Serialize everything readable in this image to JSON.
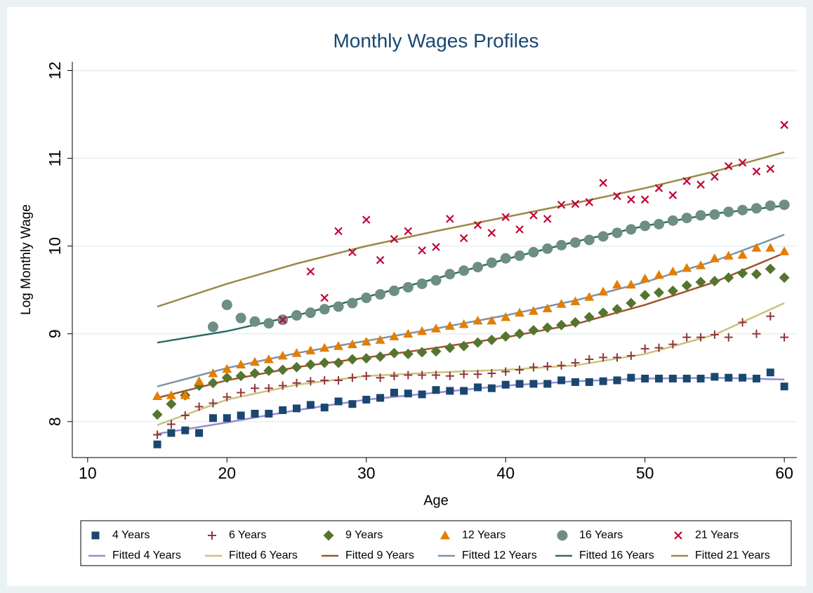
{
  "chart_data": {
    "type": "scatter",
    "title": "Monthly Wages Profiles",
    "xlabel": "Age",
    "ylabel": "Log Monthly Wage",
    "xlim": [
      8.9,
      60.9
    ],
    "ylim": [
      7.59,
      12.1
    ],
    "xticks": [
      10,
      20,
      30,
      40,
      50,
      60
    ],
    "yticks": [
      8,
      9,
      10,
      11,
      12
    ],
    "grid": true,
    "legend": "bottom",
    "x": [
      15,
      16,
      17,
      18,
      19,
      20,
      21,
      22,
      23,
      24,
      25,
      26,
      27,
      28,
      29,
      30,
      31,
      32,
      33,
      34,
      35,
      36,
      37,
      38,
      39,
      40,
      41,
      42,
      43,
      44,
      45,
      46,
      47,
      48,
      49,
      50,
      51,
      52,
      53,
      54,
      55,
      56,
      57,
      58,
      59,
      60
    ],
    "series": [
      {
        "name": "4 Years",
        "type": "scatter",
        "marker": "square",
        "color": "#1a476f",
        "values": [
          7.74,
          7.87,
          7.9,
          7.87,
          8.04,
          8.04,
          8.07,
          8.09,
          8.09,
          8.13,
          8.15,
          8.19,
          8.16,
          8.23,
          8.2,
          8.25,
          8.27,
          8.33,
          8.32,
          8.31,
          8.36,
          8.35,
          8.35,
          8.39,
          8.38,
          8.42,
          8.43,
          8.43,
          8.43,
          8.47,
          8.45,
          8.45,
          8.46,
          8.47,
          8.5,
          8.49,
          8.49,
          8.49,
          8.49,
          8.49,
          8.51,
          8.5,
          8.5,
          8.49,
          8.56,
          8.4
        ]
      },
      {
        "name": "6 Years",
        "type": "scatter",
        "marker": "plus",
        "color": "#90353b",
        "values": [
          7.85,
          7.97,
          8.07,
          8.17,
          8.21,
          8.28,
          8.33,
          8.38,
          8.38,
          8.41,
          8.44,
          8.46,
          8.47,
          8.47,
          8.5,
          8.52,
          8.5,
          8.52,
          8.53,
          8.53,
          8.53,
          8.52,
          8.54,
          8.54,
          8.55,
          8.57,
          8.59,
          8.62,
          8.63,
          8.64,
          8.67,
          8.71,
          8.73,
          8.73,
          8.75,
          8.83,
          8.84,
          8.88,
          8.96,
          8.96,
          8.99,
          8.96,
          9.13,
          9.0,
          9.2,
          8.96
        ]
      },
      {
        "name": "9 Years",
        "type": "scatter",
        "marker": "diamond",
        "color": "#55752f",
        "values": [
          8.08,
          8.2,
          8.3,
          8.41,
          8.44,
          8.5,
          8.52,
          8.55,
          8.58,
          8.59,
          8.62,
          8.65,
          8.67,
          8.67,
          8.71,
          8.72,
          8.74,
          8.78,
          8.77,
          8.79,
          8.8,
          8.84,
          8.86,
          8.9,
          8.93,
          8.97,
          9.0,
          9.04,
          9.07,
          9.1,
          9.13,
          9.19,
          9.24,
          9.28,
          9.35,
          9.44,
          9.47,
          9.49,
          9.55,
          9.59,
          9.6,
          9.64,
          9.69,
          9.68,
          9.74,
          9.64
        ]
      },
      {
        "name": "12 Years",
        "type": "scatter",
        "marker": "triangle",
        "color": "#e37e00",
        "values": [
          8.29,
          8.3,
          8.3,
          8.46,
          8.55,
          8.6,
          8.65,
          8.68,
          8.71,
          8.75,
          8.78,
          8.81,
          8.84,
          8.86,
          8.88,
          8.91,
          8.93,
          8.97,
          9.0,
          9.03,
          9.06,
          9.09,
          9.11,
          9.15,
          9.15,
          9.19,
          9.24,
          9.26,
          9.29,
          9.34,
          9.37,
          9.42,
          9.48,
          9.56,
          9.56,
          9.63,
          9.67,
          9.71,
          9.75,
          9.78,
          9.86,
          9.89,
          9.9,
          9.98,
          9.98,
          9.94
        ]
      },
      {
        "name": "16 Years",
        "type": "scatter",
        "marker": "circle",
        "color": "#6e8e84",
        "values": [
          null,
          null,
          null,
          null,
          9.08,
          9.33,
          9.18,
          9.14,
          9.12,
          9.16,
          9.21,
          9.24,
          9.28,
          9.31,
          9.35,
          9.41,
          9.45,
          9.49,
          9.53,
          9.57,
          9.61,
          9.68,
          9.72,
          9.76,
          9.81,
          9.86,
          9.89,
          9.93,
          9.97,
          10.01,
          10.04,
          10.07,
          10.11,
          10.15,
          10.19,
          10.23,
          10.25,
          10.29,
          10.32,
          10.35,
          10.36,
          10.39,
          10.41,
          10.43,
          10.46,
          10.47
        ]
      },
      {
        "name": "21 Years",
        "type": "scatter",
        "marker": "x",
        "color": "#c10534",
        "values": [
          null,
          null,
          null,
          null,
          null,
          null,
          null,
          null,
          null,
          9.16,
          null,
          9.71,
          9.41,
          10.17,
          9.93,
          10.3,
          9.84,
          10.08,
          10.17,
          9.95,
          9.99,
          10.31,
          10.09,
          10.24,
          10.15,
          10.33,
          10.19,
          10.35,
          10.31,
          10.47,
          10.48,
          10.5,
          10.72,
          10.57,
          10.53,
          10.53,
          10.66,
          10.58,
          10.74,
          10.7,
          10.79,
          10.91,
          10.95,
          10.85,
          10.88,
          11.38
        ]
      },
      {
        "name": "Fitted 4 Years",
        "type": "line",
        "color": "#938dd2",
        "x": [
          15,
          20,
          25,
          30,
          35,
          40,
          45,
          50,
          55,
          60
        ],
        "values": [
          7.86,
          7.99,
          8.13,
          8.25,
          8.33,
          8.41,
          8.46,
          8.49,
          8.5,
          8.48
        ]
      },
      {
        "name": "Fitted 6 Years",
        "type": "line",
        "color": "#cac27e",
        "x": [
          15,
          20,
          25,
          30,
          35,
          40,
          45,
          50,
          55,
          60
        ],
        "values": [
          7.96,
          8.25,
          8.42,
          8.52,
          8.56,
          8.59,
          8.64,
          8.77,
          8.99,
          9.35
        ]
      },
      {
        "name": "Fitted 9 Years",
        "type": "line",
        "color": "#a0522d",
        "x": [
          15,
          20,
          25,
          30,
          35,
          40,
          45,
          50,
          55,
          60
        ],
        "values": [
          8.27,
          8.47,
          8.62,
          8.73,
          8.84,
          8.96,
          9.11,
          9.33,
          9.59,
          9.92
        ]
      },
      {
        "name": "Fitted 12 Years",
        "type": "line",
        "color": "#7b92a8",
        "x": [
          15,
          20,
          25,
          30,
          35,
          40,
          45,
          50,
          55,
          60
        ],
        "values": [
          8.4,
          8.61,
          8.78,
          8.92,
          9.06,
          9.21,
          9.38,
          9.59,
          9.83,
          10.13
        ]
      },
      {
        "name": "Fitted 16 Years",
        "type": "line",
        "color": "#2d6d66",
        "x": [
          15,
          20,
          25,
          30,
          35,
          40,
          45,
          50,
          55,
          60
        ],
        "values": [
          8.9,
          9.03,
          9.21,
          9.42,
          9.63,
          9.85,
          10.05,
          10.23,
          10.37,
          10.46
        ]
      },
      {
        "name": "Fitted 21 Years",
        "type": "line",
        "color": "#9c8847",
        "x": [
          15,
          20,
          25,
          30,
          35,
          40,
          45,
          50,
          55,
          60
        ],
        "values": [
          9.31,
          9.57,
          9.8,
          10.0,
          10.17,
          10.33,
          10.49,
          10.66,
          10.85,
          11.07
        ]
      }
    ]
  }
}
